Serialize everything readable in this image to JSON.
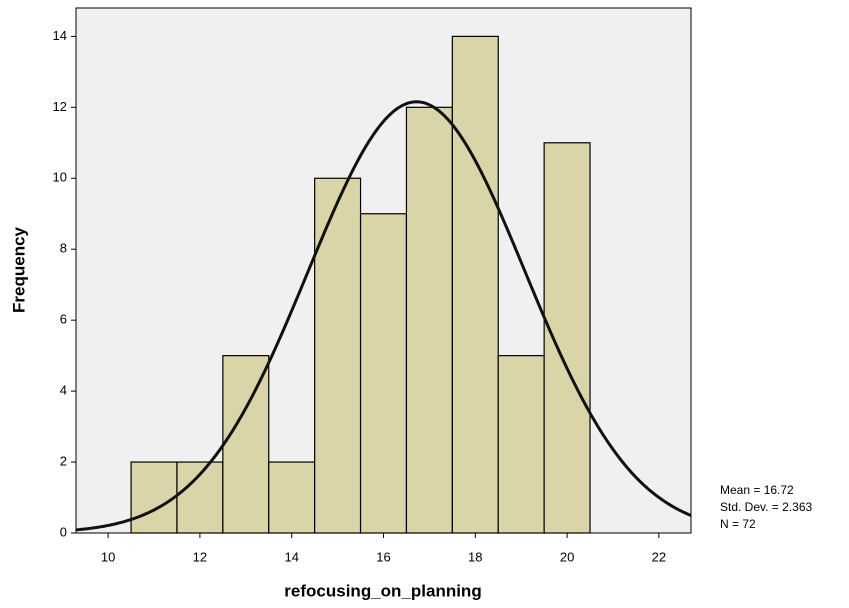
{
  "chart_data": {
    "type": "histogram",
    "x_label": "refocusing_on_planning",
    "y_label": "Frequency",
    "bins": [
      10.5,
      11.5,
      12.5,
      13.5,
      14.5,
      15.5,
      16.5,
      17.5,
      18.5,
      19.5,
      20.5
    ],
    "values": [
      2,
      2,
      5,
      2,
      10,
      9,
      12,
      14,
      5,
      11
    ],
    "color": "#d9d5a9",
    "xlim": [
      9.3,
      22.7
    ],
    "xticks": [
      10,
      12,
      14,
      16,
      18,
      20,
      22
    ],
    "ylim": [
      0,
      14.8
    ],
    "yticks": [
      0,
      2,
      4,
      6,
      8,
      10,
      12,
      14
    ],
    "normal_curve": {
      "mean": {
        "value": 16.72,
        "label": "Mean = 16.72"
      },
      "sd": {
        "value": 2.363,
        "label": "Std. Dev. = 2.363"
      },
      "n": {
        "value": 72,
        "label": "N = 72"
      }
    }
  }
}
